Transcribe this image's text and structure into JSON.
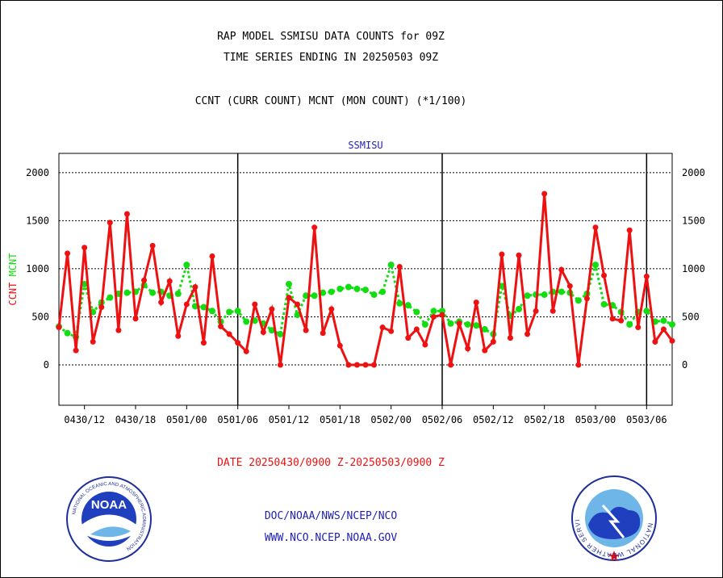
{
  "header": {
    "line1": "RAP MODEL SSMISU DATA COUNTS for 09Z",
    "line2": "TIME SERIES ENDING IN 20250503 09Z",
    "line3": "CCNT (CURR COUNT) MCNT (MON COUNT) (*1/100)"
  },
  "footer": {
    "date_range": "DATE 20250430/0900 Z-20250503/0900 Z",
    "org_line": "DOC/NOAA/NWS/NCEP/NCO",
    "url_line": "WWW.NCO.NCEP.NOAA.GOV"
  },
  "logos": {
    "noaa_text": "NOAA",
    "noaa_ring_text": "NATIONAL OCEANIC AND ATMOSPHERIC ADMINISTRATION",
    "noaa_bottom_text": "U.S. DEPARTMENT OF COMMERCE",
    "nws_ring_text": "NATIONAL WEATHER SERVICE"
  },
  "colors": {
    "ccnt": "#ee1111",
    "mcnt": "#11dd11",
    "panel_title": "#1f1fb4",
    "footer_red": "#ee1111",
    "footer_blue": "#1f1fb4"
  },
  "chart_data": {
    "type": "line",
    "title": "SSMISU",
    "ylabel_ccnt": "CCNT",
    "ylabel_mcnt": "MCNT",
    "ylim": [
      -420,
      2200
    ],
    "yticks": [
      0,
      500,
      1000,
      1500,
      2000
    ],
    "ytick_labels": [
      "0",
      "500",
      "1000",
      "1500",
      "2000"
    ],
    "xlim_hours": [
      0,
      72
    ],
    "x_tick_labels": [
      "0430/12",
      "0430/18",
      "0501/00",
      "0501/06",
      "0501/12",
      "0501/18",
      "0502/00",
      "0502/06",
      "0502/12",
      "0502/18",
      "0503/00",
      "0503/06"
    ],
    "x_tick_hours": [
      3,
      9,
      15,
      21,
      27,
      33,
      39,
      45,
      51,
      57,
      63,
      69
    ],
    "day_boundary_hours": [
      21,
      45,
      69
    ],
    "grid": "horizontal dashed",
    "x_hours": [
      0,
      1,
      2,
      3,
      4,
      5,
      6,
      7,
      8,
      9,
      10,
      11,
      12,
      13,
      14,
      15,
      16,
      17,
      18,
      19,
      20,
      21,
      22,
      23,
      24,
      25,
      26,
      27,
      28,
      29,
      30,
      31,
      32,
      33,
      34,
      35,
      36,
      37,
      38,
      39,
      40,
      41,
      42,
      43,
      44,
      45,
      46,
      47,
      48,
      49,
      50,
      51,
      52,
      53,
      54,
      55,
      56,
      57,
      58,
      59,
      60,
      61,
      62,
      63,
      64,
      65,
      66,
      67,
      68,
      69,
      70,
      71,
      72
    ],
    "series": [
      {
        "name": "CCNT",
        "values": [
          390,
          1160,
          150,
          1220,
          240,
          600,
          1480,
          360,
          1570,
          480,
          880,
          1240,
          650,
          870,
          300,
          630,
          810,
          230,
          1130,
          400,
          320,
          230,
          140,
          630,
          340,
          580,
          0,
          700,
          630,
          360,
          1430,
          330,
          580,
          200,
          0,
          0,
          0,
          0,
          390,
          350,
          1020,
          280,
          370,
          210,
          500,
          520,
          0,
          430,
          170,
          650,
          150,
          240,
          1150,
          280,
          1140,
          320,
          560,
          1780,
          560,
          990,
          820,
          0,
          690,
          1430,
          930,
          480,
          460,
          1400,
          390,
          920,
          240,
          370,
          250
        ]
      },
      {
        "name": "MCNT",
        "values": [
          400,
          330,
          290,
          840,
          550,
          650,
          700,
          740,
          750,
          760,
          830,
          750,
          760,
          720,
          740,
          1040,
          610,
          600,
          560,
          450,
          550,
          560,
          450,
          460,
          430,
          360,
          320,
          840,
          520,
          720,
          720,
          750,
          760,
          790,
          810,
          790,
          780,
          730,
          760,
          1040,
          640,
          620,
          550,
          420,
          560,
          560,
          430,
          450,
          420,
          410,
          370,
          320,
          820,
          510,
          580,
          720,
          730,
          730,
          760,
          760,
          750,
          670,
          740,
          1040,
          630,
          620,
          550,
          420,
          550,
          560,
          450,
          460,
          420
        ]
      }
    ]
  }
}
